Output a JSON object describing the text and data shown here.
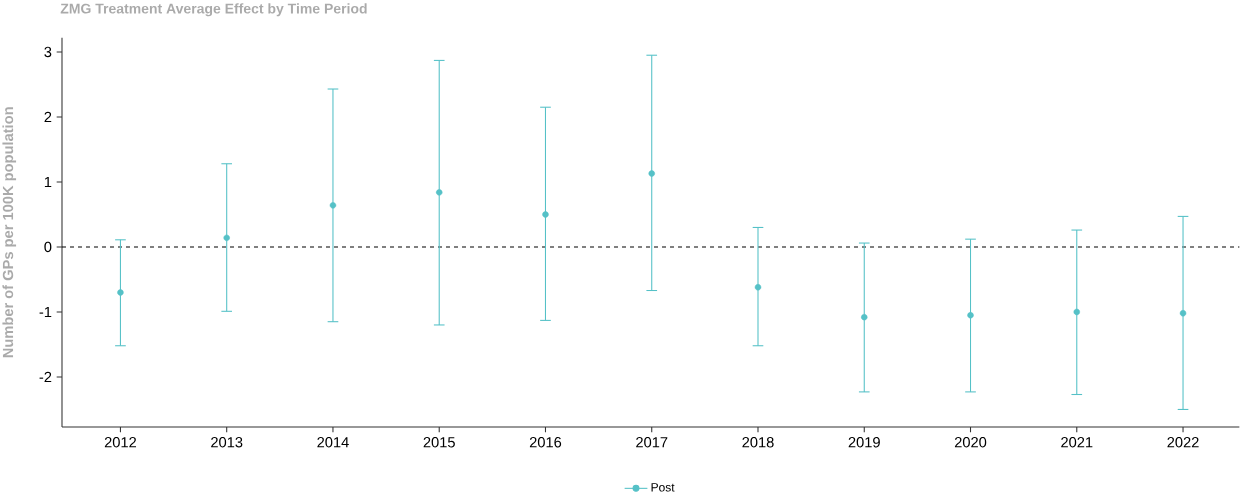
{
  "chart_data": {
    "type": "scatter",
    "title": "ZMG Treatment Average Effect by Time Period",
    "ylabel": "Number of GPs per 100K population",
    "categories": [
      "2012",
      "2013",
      "2014",
      "2015",
      "2016",
      "2017",
      "2018",
      "2019",
      "2020",
      "2021",
      "2022"
    ],
    "series": [
      {
        "name": "Post",
        "color": "#55c1c7",
        "values": [
          -0.7,
          0.14,
          0.64,
          0.84,
          0.5,
          1.13,
          -0.62,
          -1.08,
          -1.05,
          -1.0,
          -1.02
        ],
        "errors": [
          [
            -1.52,
            0.11
          ],
          [
            -0.99,
            1.28
          ],
          [
            -1.15,
            2.43
          ],
          [
            -1.2,
            2.87
          ],
          [
            -1.13,
            2.15
          ],
          [
            -0.67,
            2.95
          ],
          [
            -1.52,
            0.3
          ],
          [
            -2.23,
            0.06
          ],
          [
            -2.23,
            0.12
          ],
          [
            -2.27,
            0.26
          ],
          [
            -2.5,
            0.47
          ]
        ]
      }
    ],
    "ylim": [
      -2.77,
      3.22
    ],
    "yticks": [
      -2,
      -1,
      0,
      1,
      2,
      3
    ],
    "ref_lines": [
      {
        "axis": "y",
        "value": 0,
        "color": "#000000",
        "line_style": "dashed"
      }
    ],
    "grid": false,
    "legend": "bottom",
    "marker": "circle"
  }
}
